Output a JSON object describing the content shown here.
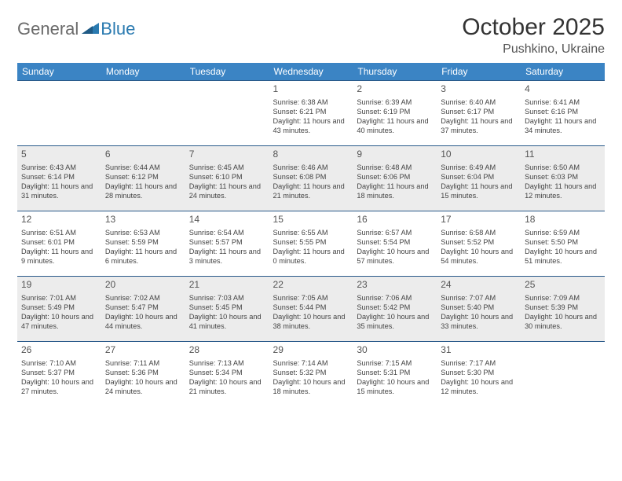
{
  "brand": {
    "general": "General",
    "blue": "Blue"
  },
  "title": "October 2025",
  "location": "Pushkino, Ukraine",
  "colors": {
    "header_bg": "#3b84c4",
    "header_text": "#ffffff",
    "row_border": "#2a5a8a",
    "shaded_bg": "#ececec",
    "logo_gray": "#6a6a6a",
    "logo_blue": "#2a7ab0",
    "text": "#444444"
  },
  "day_headers": [
    "Sunday",
    "Monday",
    "Tuesday",
    "Wednesday",
    "Thursday",
    "Friday",
    "Saturday"
  ],
  "weeks": [
    {
      "shaded": false,
      "cells": [
        {
          "day": "",
          "sunrise": "",
          "sunset": "",
          "daylight": ""
        },
        {
          "day": "",
          "sunrise": "",
          "sunset": "",
          "daylight": ""
        },
        {
          "day": "",
          "sunrise": "",
          "sunset": "",
          "daylight": ""
        },
        {
          "day": "1",
          "sunrise": "Sunrise: 6:38 AM",
          "sunset": "Sunset: 6:21 PM",
          "daylight": "Daylight: 11 hours and 43 minutes."
        },
        {
          "day": "2",
          "sunrise": "Sunrise: 6:39 AM",
          "sunset": "Sunset: 6:19 PM",
          "daylight": "Daylight: 11 hours and 40 minutes."
        },
        {
          "day": "3",
          "sunrise": "Sunrise: 6:40 AM",
          "sunset": "Sunset: 6:17 PM",
          "daylight": "Daylight: 11 hours and 37 minutes."
        },
        {
          "day": "4",
          "sunrise": "Sunrise: 6:41 AM",
          "sunset": "Sunset: 6:16 PM",
          "daylight": "Daylight: 11 hours and 34 minutes."
        }
      ]
    },
    {
      "shaded": true,
      "cells": [
        {
          "day": "5",
          "sunrise": "Sunrise: 6:43 AM",
          "sunset": "Sunset: 6:14 PM",
          "daylight": "Daylight: 11 hours and 31 minutes."
        },
        {
          "day": "6",
          "sunrise": "Sunrise: 6:44 AM",
          "sunset": "Sunset: 6:12 PM",
          "daylight": "Daylight: 11 hours and 28 minutes."
        },
        {
          "day": "7",
          "sunrise": "Sunrise: 6:45 AM",
          "sunset": "Sunset: 6:10 PM",
          "daylight": "Daylight: 11 hours and 24 minutes."
        },
        {
          "day": "8",
          "sunrise": "Sunrise: 6:46 AM",
          "sunset": "Sunset: 6:08 PM",
          "daylight": "Daylight: 11 hours and 21 minutes."
        },
        {
          "day": "9",
          "sunrise": "Sunrise: 6:48 AM",
          "sunset": "Sunset: 6:06 PM",
          "daylight": "Daylight: 11 hours and 18 minutes."
        },
        {
          "day": "10",
          "sunrise": "Sunrise: 6:49 AM",
          "sunset": "Sunset: 6:04 PM",
          "daylight": "Daylight: 11 hours and 15 minutes."
        },
        {
          "day": "11",
          "sunrise": "Sunrise: 6:50 AM",
          "sunset": "Sunset: 6:03 PM",
          "daylight": "Daylight: 11 hours and 12 minutes."
        }
      ]
    },
    {
      "shaded": false,
      "cells": [
        {
          "day": "12",
          "sunrise": "Sunrise: 6:51 AM",
          "sunset": "Sunset: 6:01 PM",
          "daylight": "Daylight: 11 hours and 9 minutes."
        },
        {
          "day": "13",
          "sunrise": "Sunrise: 6:53 AM",
          "sunset": "Sunset: 5:59 PM",
          "daylight": "Daylight: 11 hours and 6 minutes."
        },
        {
          "day": "14",
          "sunrise": "Sunrise: 6:54 AM",
          "sunset": "Sunset: 5:57 PM",
          "daylight": "Daylight: 11 hours and 3 minutes."
        },
        {
          "day": "15",
          "sunrise": "Sunrise: 6:55 AM",
          "sunset": "Sunset: 5:55 PM",
          "daylight": "Daylight: 11 hours and 0 minutes."
        },
        {
          "day": "16",
          "sunrise": "Sunrise: 6:57 AM",
          "sunset": "Sunset: 5:54 PM",
          "daylight": "Daylight: 10 hours and 57 minutes."
        },
        {
          "day": "17",
          "sunrise": "Sunrise: 6:58 AM",
          "sunset": "Sunset: 5:52 PM",
          "daylight": "Daylight: 10 hours and 54 minutes."
        },
        {
          "day": "18",
          "sunrise": "Sunrise: 6:59 AM",
          "sunset": "Sunset: 5:50 PM",
          "daylight": "Daylight: 10 hours and 51 minutes."
        }
      ]
    },
    {
      "shaded": true,
      "cells": [
        {
          "day": "19",
          "sunrise": "Sunrise: 7:01 AM",
          "sunset": "Sunset: 5:49 PM",
          "daylight": "Daylight: 10 hours and 47 minutes."
        },
        {
          "day": "20",
          "sunrise": "Sunrise: 7:02 AM",
          "sunset": "Sunset: 5:47 PM",
          "daylight": "Daylight: 10 hours and 44 minutes."
        },
        {
          "day": "21",
          "sunrise": "Sunrise: 7:03 AM",
          "sunset": "Sunset: 5:45 PM",
          "daylight": "Daylight: 10 hours and 41 minutes."
        },
        {
          "day": "22",
          "sunrise": "Sunrise: 7:05 AM",
          "sunset": "Sunset: 5:44 PM",
          "daylight": "Daylight: 10 hours and 38 minutes."
        },
        {
          "day": "23",
          "sunrise": "Sunrise: 7:06 AM",
          "sunset": "Sunset: 5:42 PM",
          "daylight": "Daylight: 10 hours and 35 minutes."
        },
        {
          "day": "24",
          "sunrise": "Sunrise: 7:07 AM",
          "sunset": "Sunset: 5:40 PM",
          "daylight": "Daylight: 10 hours and 33 minutes."
        },
        {
          "day": "25",
          "sunrise": "Sunrise: 7:09 AM",
          "sunset": "Sunset: 5:39 PM",
          "daylight": "Daylight: 10 hours and 30 minutes."
        }
      ]
    },
    {
      "shaded": false,
      "cells": [
        {
          "day": "26",
          "sunrise": "Sunrise: 7:10 AM",
          "sunset": "Sunset: 5:37 PM",
          "daylight": "Daylight: 10 hours and 27 minutes."
        },
        {
          "day": "27",
          "sunrise": "Sunrise: 7:11 AM",
          "sunset": "Sunset: 5:36 PM",
          "daylight": "Daylight: 10 hours and 24 minutes."
        },
        {
          "day": "28",
          "sunrise": "Sunrise: 7:13 AM",
          "sunset": "Sunset: 5:34 PM",
          "daylight": "Daylight: 10 hours and 21 minutes."
        },
        {
          "day": "29",
          "sunrise": "Sunrise: 7:14 AM",
          "sunset": "Sunset: 5:32 PM",
          "daylight": "Daylight: 10 hours and 18 minutes."
        },
        {
          "day": "30",
          "sunrise": "Sunrise: 7:15 AM",
          "sunset": "Sunset: 5:31 PM",
          "daylight": "Daylight: 10 hours and 15 minutes."
        },
        {
          "day": "31",
          "sunrise": "Sunrise: 7:17 AM",
          "sunset": "Sunset: 5:30 PM",
          "daylight": "Daylight: 10 hours and 12 minutes."
        },
        {
          "day": "",
          "sunrise": "",
          "sunset": "",
          "daylight": ""
        }
      ]
    }
  ]
}
